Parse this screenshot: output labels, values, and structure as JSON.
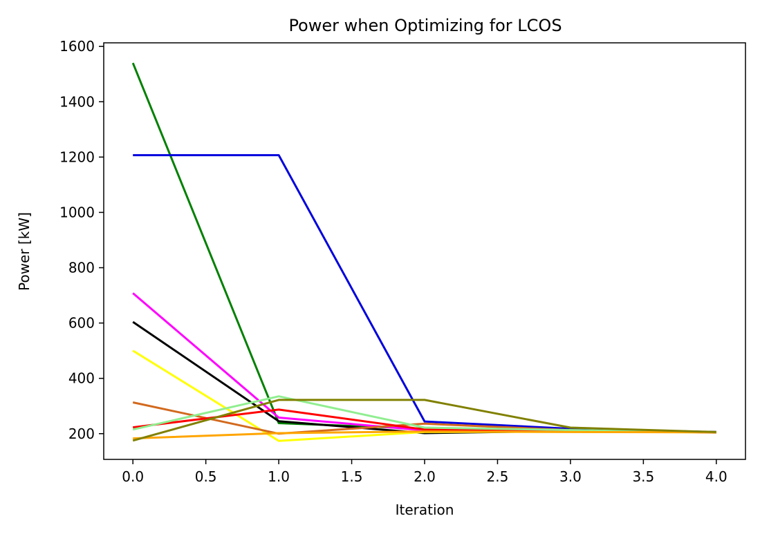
{
  "chart_data": {
    "type": "line",
    "title": "Power when Optimizing for LCOS",
    "xlabel": "Iteration",
    "ylabel": "Power [kW]",
    "xlim": [
      -0.2,
      4.2
    ],
    "ylim": [
      107,
      1613
    ],
    "xticks": [
      0.0,
      0.5,
      1.0,
      1.5,
      2.0,
      2.5,
      3.0,
      3.5,
      4.0
    ],
    "xtick_labels": [
      "0.0",
      "0.5",
      "1.0",
      "1.5",
      "2.0",
      "2.5",
      "3.0",
      "3.5",
      "4.0"
    ],
    "yticks": [
      200,
      400,
      600,
      800,
      1000,
      1200,
      1400,
      1600
    ],
    "ytick_labels": [
      "200",
      "400",
      "600",
      "800",
      "1000",
      "1200",
      "1400",
      "1600"
    ],
    "grid": false,
    "legend": null,
    "x": [
      0,
      1,
      2,
      3,
      4
    ],
    "series": [
      {
        "color": "#008000",
        "values": [
          1540,
          238,
          218,
          212,
          205
        ]
      },
      {
        "color": "#0000dd",
        "values": [
          1207,
          1207,
          244,
          218,
          206
        ]
      },
      {
        "color": "#ff00ff",
        "values": [
          708,
          258,
          212,
          210,
          205
        ]
      },
      {
        "color": "#000000",
        "values": [
          604,
          245,
          202,
          210,
          206
        ]
      },
      {
        "color": "#ffff00",
        "values": [
          500,
          174,
          206,
          207,
          205
        ]
      },
      {
        "color": "#d2691e",
        "values": [
          313,
          200,
          236,
          213,
          204
        ]
      },
      {
        "color": "#ff0000",
        "values": [
          223,
          287,
          215,
          210,
          205
        ]
      },
      {
        "color": "#90ee90",
        "values": [
          215,
          335,
          222,
          213,
          205
        ]
      },
      {
        "color": "#ffa500",
        "values": [
          183,
          202,
          208,
          206,
          205
        ]
      },
      {
        "color": "#808000",
        "values": [
          175,
          322,
          322,
          222,
          206
        ]
      }
    ]
  }
}
